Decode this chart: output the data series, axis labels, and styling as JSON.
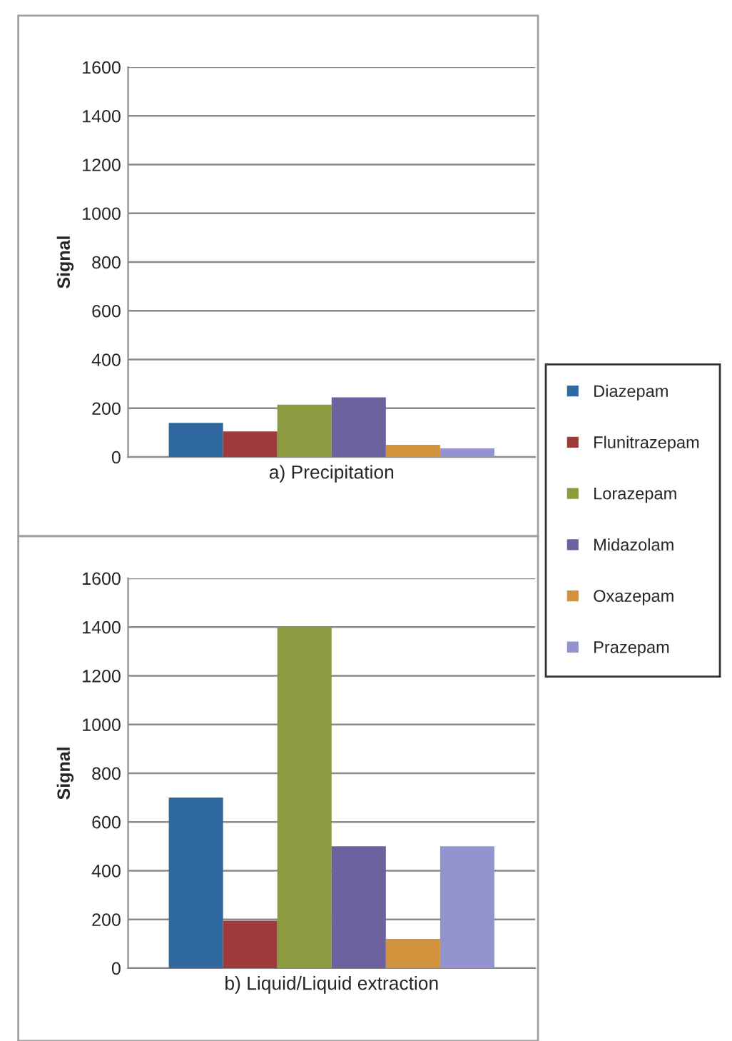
{
  "chart_data": [
    {
      "type": "bar",
      "xlabel": "a) Precipitation",
      "ylabel": "Signal",
      "categories": [
        null
      ],
      "ylim": [
        0,
        1600
      ],
      "yticks": [
        0,
        200,
        400,
        600,
        800,
        1000,
        1200,
        1400,
        1600
      ],
      "grid": "y",
      "tick_labels": "y",
      "legend": "right",
      "series": [
        {
          "name": "Diazepam",
          "color": "#2f69a0",
          "values": [
            140
          ]
        },
        {
          "name": "Flunitrazepam",
          "color": "#9e3b3a",
          "values": [
            105
          ]
        },
        {
          "name": "Lorazepam",
          "color": "#8c9b3f",
          "values": [
            215
          ]
        },
        {
          "name": "Midazolam",
          "color": "#6b619f",
          "values": [
            245
          ]
        },
        {
          "name": "Oxazepam",
          "color": "#d1923b",
          "values": [
            50
          ]
        },
        {
          "name": "Prazepam",
          "color": "#9293cf",
          "values": [
            35
          ]
        }
      ]
    },
    {
      "type": "bar",
      "xlabel": "b) Liquid/Liquid extraction",
      "ylabel": "Signal",
      "categories": [
        null
      ],
      "ylim": [
        0,
        1600
      ],
      "yticks": [
        0,
        200,
        400,
        600,
        800,
        1000,
        1200,
        1400,
        1600
      ],
      "grid": "y",
      "tick_labels": "y",
      "series": [
        {
          "color": "#2f69a0",
          "values": [
            700
          ]
        },
        {
          "color": "#9e3b3a",
          "values": [
            195
          ]
        },
        {
          "color": "#8c9b3f",
          "values": [
            1400
          ]
        },
        {
          "color": "#6b619f",
          "values": [
            500
          ]
        },
        {
          "color": "#d1923b",
          "values": [
            120
          ]
        },
        {
          "color": "#9293cf",
          "values": [
            500
          ]
        }
      ]
    }
  ]
}
